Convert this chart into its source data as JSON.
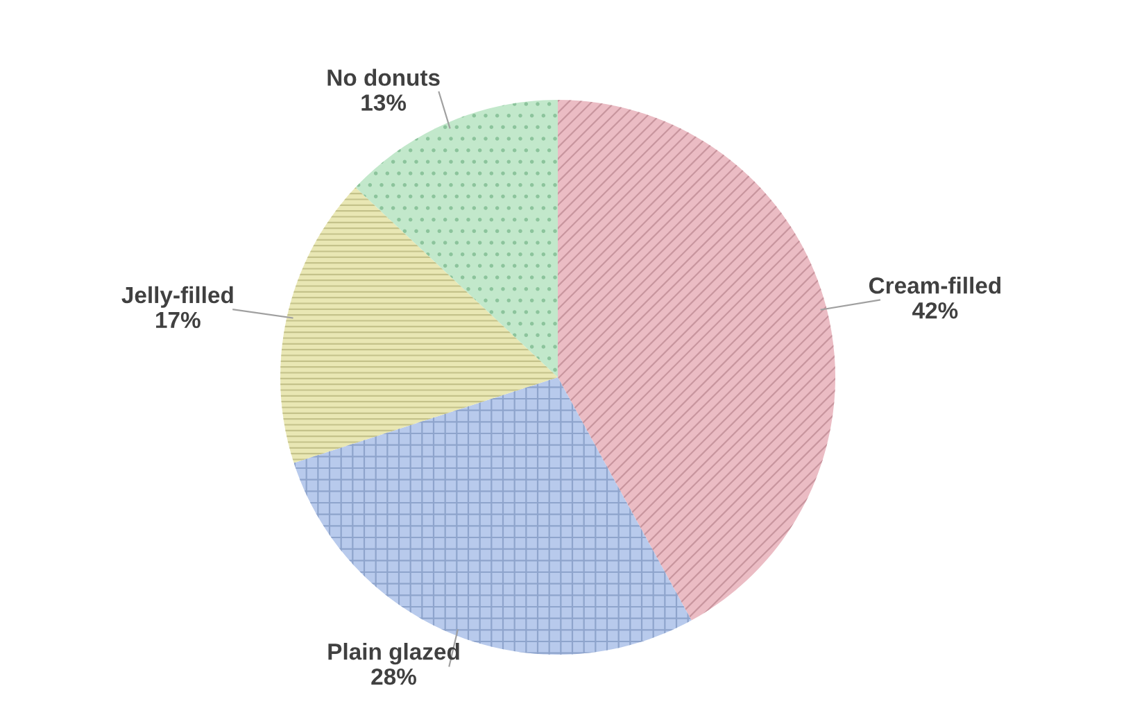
{
  "chart_data": {
    "type": "pie",
    "categories": [
      "Cream-filled",
      "Plain glazed",
      "Jelly-filled",
      "No donuts"
    ],
    "values": [
      42,
      28,
      17,
      13
    ],
    "value_labels": [
      "42%",
      "28%",
      "17%",
      "13%"
    ],
    "colors": [
      "#ebbcc4",
      "#b8caec",
      "#e9e7b4",
      "#c2e8cb"
    ],
    "legend": false
  }
}
